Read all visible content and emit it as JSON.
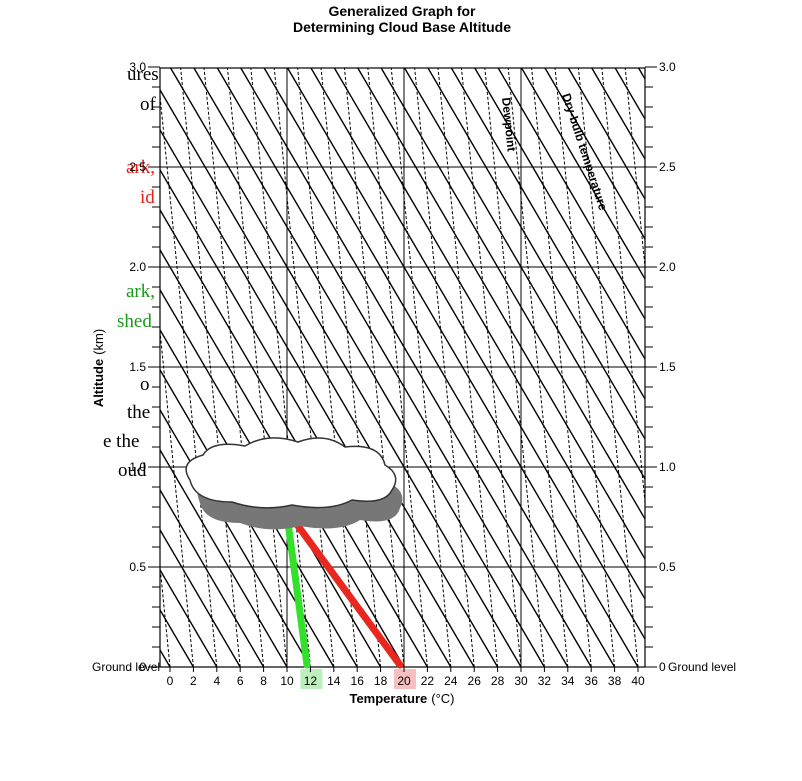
{
  "header": {
    "title": [
      "Generalized Graph for",
      "Determining Cloud Base Altitude"
    ]
  },
  "side_text": [
    "ures",
    "of",
    "ark,",
    "id",
    "ark,",
    "shed",
    "o",
    "the",
    "e the",
    "oud"
  ],
  "y_axis": {
    "label": "Altitude",
    "unit": "(km)",
    "ticks": [
      "3.0",
      "2.5",
      "2.0",
      "1.5",
      "1.0",
      "0.5",
      "0"
    ],
    "ground": "Ground level"
  },
  "x_axis": {
    "label": "Temperature",
    "unit": "(°C)",
    "ticks": [
      "0",
      "2",
      "4",
      "6",
      "8",
      "10",
      "12",
      "14",
      "16",
      "18",
      "20",
      "22",
      "24",
      "26",
      "28",
      "30",
      "32",
      "34",
      "36",
      "38",
      "40"
    ]
  },
  "annotations": {
    "dewpoint": "Dewpoint",
    "dry_bulb": "Dry-bulb temperature"
  }
}
